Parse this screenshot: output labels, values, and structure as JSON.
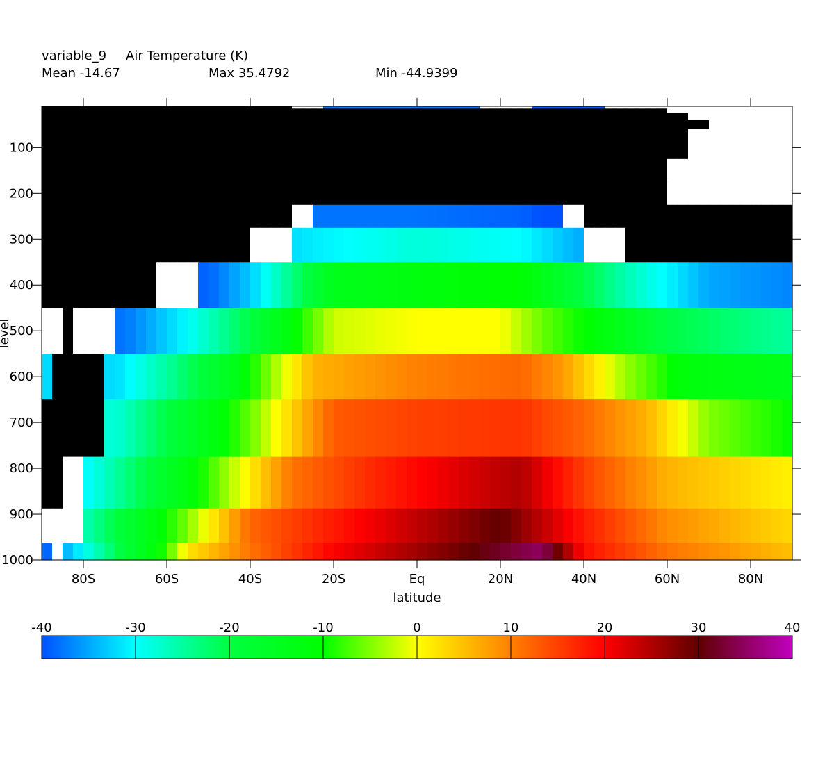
{
  "header": {
    "variable": "variable_9",
    "title": "Air Temperature (K)",
    "mean_label": "Mean -14.67",
    "max_label": "Max 35.4792",
    "min_label": "Min -44.9399"
  },
  "chart_data": {
    "type": "heatmap",
    "title": "variable_9   Air Temperature (K)",
    "xlabel": "latitude",
    "ylabel": "level",
    "xlim": [
      -90,
      90
    ],
    "ylim": [
      1000,
      10
    ],
    "x_ticks": [
      -80,
      -60,
      -40,
      -20,
      0,
      20,
      40,
      60,
      80
    ],
    "x_tick_labels": [
      "80S",
      "60S",
      "40S",
      "20S",
      "Eq",
      "20N",
      "40N",
      "60N",
      "80N"
    ],
    "y_ticks": [
      100,
      200,
      300,
      400,
      500,
      600,
      700,
      800,
      900,
      1000
    ],
    "y_tick_labels": [
      "100",
      "200",
      "300",
      "400",
      "500",
      "600",
      "700",
      "800",
      "900",
      "1000"
    ],
    "levels": [
      10,
      20,
      30,
      50,
      70,
      100,
      150,
      200,
      250,
      300,
      400,
      500,
      600,
      700,
      850,
      925,
      1000
    ],
    "summary": {
      "mean": -14.67,
      "max": 35.4792,
      "min": -44.9399
    },
    "missing_color": "#000000",
    "colorbar": {
      "min": -40,
      "max": 40,
      "ticks": [
        -40,
        -30,
        -20,
        -10,
        0,
        10,
        20,
        30,
        40
      ],
      "tick_labels": [
        "-40",
        "-30",
        "-20",
        "-10",
        "0",
        "10",
        "20",
        "30",
        "40"
      ],
      "colors": [
        "#0050ff",
        "#00ffff",
        "#00ff40",
        "#00ff00",
        "#ffff00",
        "#ff8000",
        "#ff0000",
        "#600000",
        "#c000c0"
      ]
    },
    "profiles": {
      "description_units": "latitude (deg) : temperature (C) pairs per pressure level",
      "L250": [
        [
          -30,
          -38
        ],
        [
          0,
          -38
        ],
        [
          25,
          -39
        ],
        [
          35,
          -41
        ]
      ],
      "L300": [
        [
          -35,
          -33
        ],
        [
          -25,
          -31
        ],
        [
          0,
          -28
        ],
        [
          25,
          -30
        ],
        [
          40,
          -35
        ]
      ],
      "L400": [
        [
          -50,
          -39
        ],
        [
          -40,
          -33
        ],
        [
          -20,
          -14
        ],
        [
          0,
          -12
        ],
        [
          25,
          -10
        ],
        [
          35,
          -17
        ],
        [
          50,
          -26
        ],
        [
          70,
          -35
        ],
        [
          90,
          -37
        ]
      ],
      "L500": [
        [
          -70,
          -38
        ],
        [
          -55,
          -30
        ],
        [
          -40,
          -20
        ],
        [
          -20,
          -2
        ],
        [
          0,
          0
        ],
        [
          20,
          0
        ],
        [
          30,
          -6
        ],
        [
          45,
          -12
        ],
        [
          60,
          -20
        ],
        [
          90,
          -25
        ]
      ],
      "L600": [
        [
          -72,
          -32
        ],
        [
          -60,
          -25
        ],
        [
          -45,
          -15
        ],
        [
          -25,
          6
        ],
        [
          0,
          10
        ],
        [
          25,
          12
        ],
        [
          35,
          8
        ],
        [
          50,
          -4
        ],
        [
          65,
          -12
        ],
        [
          90,
          -14
        ]
      ],
      "L700": [
        [
          -72,
          -28
        ],
        [
          -60,
          -20
        ],
        [
          -40,
          -6
        ],
        [
          -20,
          13
        ],
        [
          0,
          15
        ],
        [
          25,
          16
        ],
        [
          40,
          12
        ],
        [
          55,
          6
        ],
        [
          70,
          -5
        ],
        [
          90,
          -10
        ]
      ],
      "L850": [
        [
          -82,
          -32
        ],
        [
          -65,
          -20
        ],
        [
          -50,
          -8
        ],
        [
          -30,
          11
        ],
        [
          -10,
          17
        ],
        [
          10,
          22
        ],
        [
          25,
          25
        ],
        [
          40,
          15
        ],
        [
          60,
          6
        ],
        [
          90,
          1
        ]
      ],
      "L925": [
        [
          -82,
          -28
        ],
        [
          -65,
          -14
        ],
        [
          -55,
          -5
        ],
        [
          -40,
          12
        ],
        [
          -20,
          18
        ],
        [
          0,
          24
        ],
        [
          20,
          30
        ],
        [
          40,
          18
        ],
        [
          60,
          9
        ],
        [
          90,
          3
        ]
      ],
      "L1000": [
        [
          -90,
          -40
        ],
        [
          -82,
          -32
        ],
        [
          -72,
          -21
        ],
        [
          -60,
          -8
        ],
        [
          -55,
          2
        ],
        [
          -40,
          11
        ],
        [
          -20,
          20
        ],
        [
          0,
          26
        ],
        [
          20,
          32
        ],
        [
          30,
          35
        ],
        [
          40,
          19
        ],
        [
          60,
          11
        ],
        [
          90,
          5
        ]
      ]
    },
    "missing_mask": {
      "description_units": "latitude ranges (deg) with no data (drawn black) or blank (white) per level",
      "L10": {
        "black": [
          [
            -90,
            -30
          ]
        ],
        "white": [
          [
            -30,
            -22
          ],
          [
            15,
            28
          ],
          [
            44,
            90
          ]
        ]
      },
      "L20": {
        "black": [
          [
            -90,
            61
          ]
        ],
        "white": [
          [
            61,
            90
          ]
        ]
      },
      "L30": {
        "black": [
          [
            -90,
            66
          ]
        ],
        "white": [
          [
            66,
            90
          ]
        ]
      },
      "L50": {
        "black": [
          [
            -90,
            69
          ]
        ],
        "white": [
          [
            69,
            90
          ]
        ]
      },
      "L70": {
        "black": [
          [
            -90,
            66
          ]
        ],
        "white": [
          [
            66,
            90
          ]
        ]
      },
      "L100": {
        "black": [
          [
            -90,
            66
          ]
        ],
        "white": [
          [
            66,
            90
          ]
        ]
      },
      "L150": {
        "black": [
          [
            -90,
            61
          ]
        ],
        "white": [
          [
            61,
            90
          ]
        ]
      },
      "L200": {
        "black": [
          [
            -90,
            61
          ]
        ],
        "white": [
          [
            61,
            90
          ]
        ]
      },
      "L250": {
        "black": [
          [
            -90,
            -31
          ],
          [
            41,
            90
          ]
        ],
        "white": [
          [
            -31,
            -24
          ],
          [
            36,
            41
          ]
        ]
      },
      "L300": {
        "black": [
          [
            -90,
            -39
          ],
          [
            51,
            90
          ]
        ],
        "white": [
          [
            -39,
            -31
          ],
          [
            41,
            51
          ]
        ]
      },
      "L400": {
        "black": [
          [
            -90,
            -62
          ]
        ],
        "white": [
          [
            -62,
            -52
          ]
        ]
      },
      "L500": {
        "black": [
          [
            -86,
            -82
          ]
        ],
        "white": [
          [
            -90,
            -86
          ],
          [
            -82,
            -72
          ]
        ]
      },
      "L600": {
        "black": [
          [
            -87,
            -76
          ]
        ],
        "white": [
          [
            -76,
            -74
          ]
        ]
      },
      "L700": {
        "black": [
          [
            -90,
            -76
          ]
        ],
        "white": [
          [
            -76,
            -74
          ]
        ]
      },
      "L850": {
        "black": [
          [
            -90,
            -84
          ]
        ],
        "white": [
          [
            -84,
            -80
          ]
        ]
      },
      "L925": {
        "black": [],
        "white": [
          [
            -90,
            -81
          ]
        ]
      },
      "L1000": {
        "black": [],
        "white": [
          [
            -88,
            -84
          ]
        ]
      }
    }
  }
}
